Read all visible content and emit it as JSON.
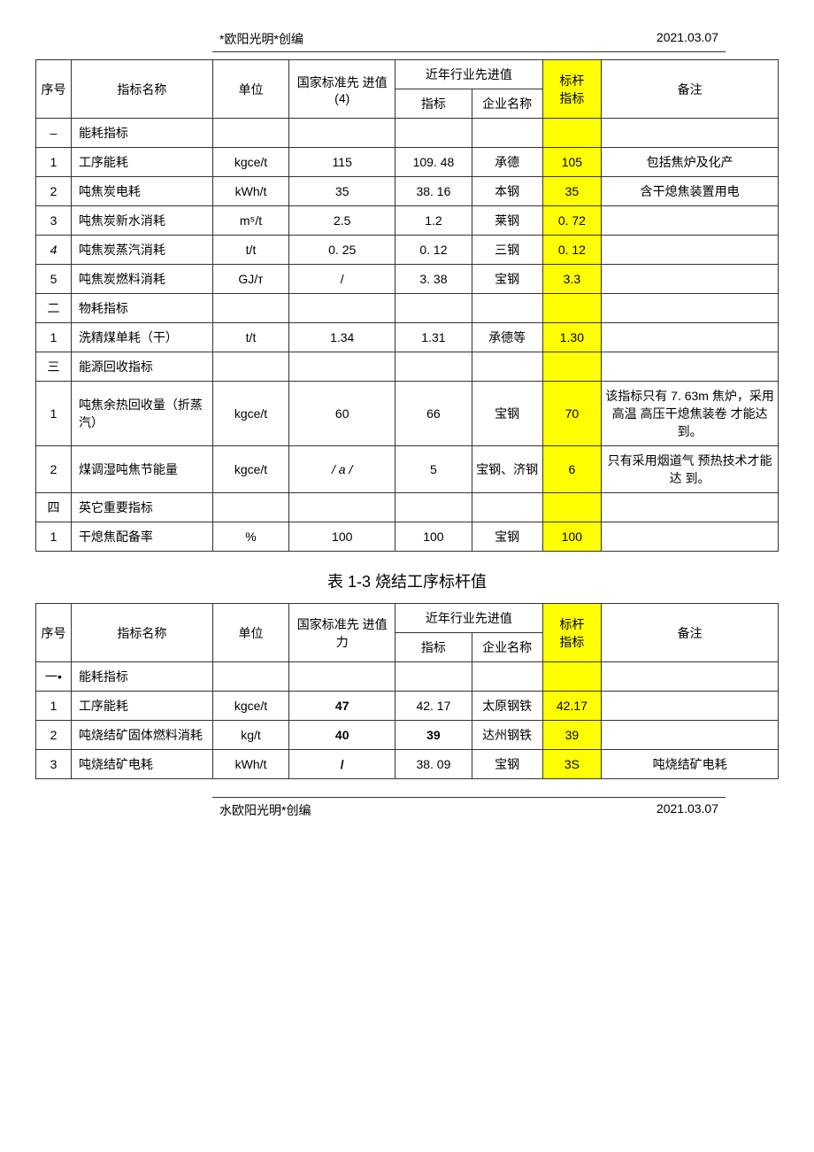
{
  "header": {
    "author": "*欧阳光明*创编",
    "date": "2021.03.07"
  },
  "footer": {
    "author": "水欧阳光明*创编",
    "date": "2021.03.07"
  },
  "table1": {
    "headers": {
      "seq": "序号",
      "name": "指标名称",
      "unit": "单位",
      "standard": "国家标准先 进值(4)",
      "recent_group": "近年行业先进值",
      "index": "指标",
      "company": "企业名称",
      "benchmark_line1": "标杆",
      "benchmark_line2": "指标",
      "remark": "备注"
    },
    "rows": [
      {
        "seq": "–",
        "name": "能耗指标",
        "unit": "",
        "standard": "",
        "index": "",
        "company": "",
        "benchmark": "",
        "remark": "",
        "name_left": true
      },
      {
        "seq": "1",
        "name": "工序能耗",
        "unit": "kgce/t",
        "standard": "115",
        "index": "109. 48",
        "company": "承德",
        "benchmark": "105",
        "remark": "包括焦炉及化产",
        "name_left": true
      },
      {
        "seq": "2",
        "name": "吨焦炭电耗",
        "unit": "kWh/t",
        "standard": "35",
        "index": "38. 16",
        "company": "本钢",
        "benchmark": "35",
        "remark": "含干熄焦装置用电",
        "name_left": true
      },
      {
        "seq": "3",
        "name": "吨焦炭新水消耗",
        "unit": "m⁵/t",
        "standard": "2.5",
        "index": "1.2",
        "company": "莱钢",
        "benchmark": "0. 72",
        "remark": "",
        "name_left": true
      },
      {
        "seq": "4",
        "name": "吨焦炭蒸汽消耗",
        "unit": "t/t",
        "standard": "0. 25",
        "index": "0. 12",
        "company": "三钢",
        "benchmark": "0. 12",
        "remark": "",
        "name_left": true,
        "seq_italic": true
      },
      {
        "seq": "5",
        "name": "吨焦炭燃料消耗",
        "unit": "GJ/т",
        "standard": "/",
        "index": "3. 38",
        "company": "宝钢",
        "benchmark": "3.3",
        "remark": "",
        "name_left": true
      },
      {
        "seq": "二",
        "name": "物耗指标",
        "unit": "",
        "standard": "",
        "index": "",
        "company": "",
        "benchmark": "",
        "remark": "",
        "name_left": true
      },
      {
        "seq": "1",
        "name": "洗精煤单耗（干）",
        "unit": "t/t",
        "standard": "1.34",
        "index": "1.31",
        "company": "承德等",
        "benchmark": "1.30",
        "remark": "",
        "name_left": true
      },
      {
        "seq": "三",
        "name": "能源回收指标",
        "unit": "",
        "standard": "",
        "index": "",
        "company": "",
        "benchmark": "",
        "remark": "",
        "name_left": true
      },
      {
        "seq": "1",
        "name": "吨焦余热回收量（折蒸汽）",
        "unit": "kgce/t",
        "standard": "60",
        "index": "66",
        "company": "宝钢",
        "benchmark": "70",
        "remark": "该指标只有 7. 63m 焦炉，采用高温 高压干熄焦装卷 才能达到。",
        "name_left": true
      },
      {
        "seq": "2",
        "name": "煤调湿吨焦节能量",
        "unit": "kgce/t",
        "standard": "/ a /",
        "index": "5",
        "company": "宝钢、济钢",
        "benchmark": "6",
        "remark": "只有采用烟道气 预热技术才能达 到。",
        "name_left": true,
        "std_italic": true
      },
      {
        "seq": "四",
        "name": "英它重要指标",
        "unit": "",
        "standard": "",
        "index": "",
        "company": "",
        "benchmark": "",
        "remark": "",
        "name_left": true
      },
      {
        "seq": "1",
        "name": "干熄焦配备率",
        "unit": "%",
        "standard": "100",
        "index": "100",
        "company": "宝钢",
        "benchmark": "100",
        "remark": "",
        "name_left": true
      }
    ]
  },
  "table2_title": "表 1-3 烧结工序标杆值",
  "table2": {
    "headers": {
      "seq": "序号",
      "name": "指标名称",
      "unit": "单位",
      "standard": "国家标准先 进值力",
      "recent_group": "近年行业先进值",
      "index": "指标",
      "company": "企业名称",
      "benchmark_line1": "标杆",
      "benchmark_line2": "指标",
      "remark": "备注"
    },
    "rows": [
      {
        "seq": "一•",
        "name": "能耗指标",
        "unit": "",
        "standard": "",
        "index": "",
        "company": "",
        "benchmark": "",
        "remark": "",
        "name_left": true
      },
      {
        "seq": "1",
        "name": "工序能耗",
        "unit": "kgce/t",
        "standard": "47",
        "index": "42. 17",
        "company": "太原钢铁",
        "benchmark": "42.17",
        "remark": "",
        "name_left": true,
        "std_bold": true
      },
      {
        "seq": "2",
        "name": "吨烧结矿固体燃料消耗",
        "unit": "kg/t",
        "standard": "40",
        "index": "39",
        "company": "达州钢铁",
        "benchmark": "39",
        "remark": "",
        "name_left": true,
        "std_bold": true,
        "idx_bold": true
      },
      {
        "seq": "3",
        "name": "吨烧结矿电耗",
        "unit": "kWh/t",
        "standard": "/",
        "index": "38. 09",
        "company": "宝钢",
        "benchmark": "3S",
        "remark": "吨烧结矿电耗",
        "name_left": true,
        "std_bold": true
      }
    ]
  }
}
